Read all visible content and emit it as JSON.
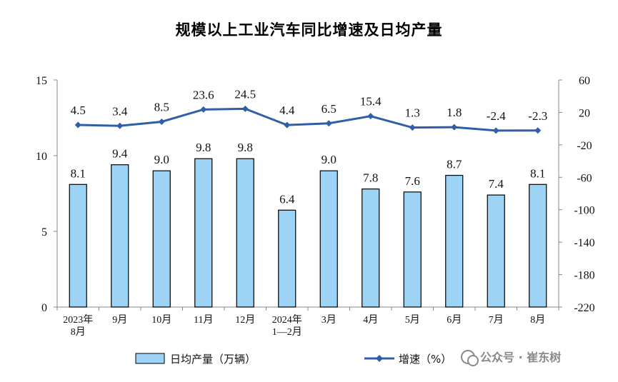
{
  "chart_data": {
    "type": "bar+line",
    "title": "规模以上工业汽车同比增速及日均产量",
    "categories": [
      [
        "2023年",
        "8月"
      ],
      [
        "9月"
      ],
      [
        "10月"
      ],
      [
        "11月"
      ],
      [
        "12月"
      ],
      [
        "2024年",
        "1—2月"
      ],
      [
        "3月"
      ],
      [
        "4月"
      ],
      [
        "5月"
      ],
      [
        "6月"
      ],
      [
        "7月"
      ],
      [
        "8月"
      ]
    ],
    "series": [
      {
        "name": "日均产量（万辆）",
        "type": "bar",
        "axis": "left",
        "color": "#9DD3F5",
        "values": [
          8.1,
          9.4,
          9.0,
          9.8,
          9.8,
          6.4,
          9.0,
          7.8,
          7.6,
          8.7,
          7.4,
          8.1
        ]
      },
      {
        "name": "增速（%）",
        "type": "line",
        "axis": "right",
        "color": "#2E5FA8",
        "values": [
          4.5,
          3.4,
          8.5,
          23.6,
          24.5,
          4.4,
          6.5,
          15.4,
          1.3,
          1.8,
          -2.4,
          -2.3
        ]
      }
    ],
    "y_left": {
      "range": [
        0,
        15
      ],
      "ticks": [
        0,
        5,
        10,
        15
      ]
    },
    "y_right": {
      "range": [
        -220,
        60
      ],
      "ticks": [
        60,
        20,
        -20,
        -60,
        -100,
        -140,
        -180,
        -220
      ]
    },
    "legend_position": "bottom",
    "grid": false
  },
  "watermark": {
    "text": "公众号 · 崔东树"
  }
}
